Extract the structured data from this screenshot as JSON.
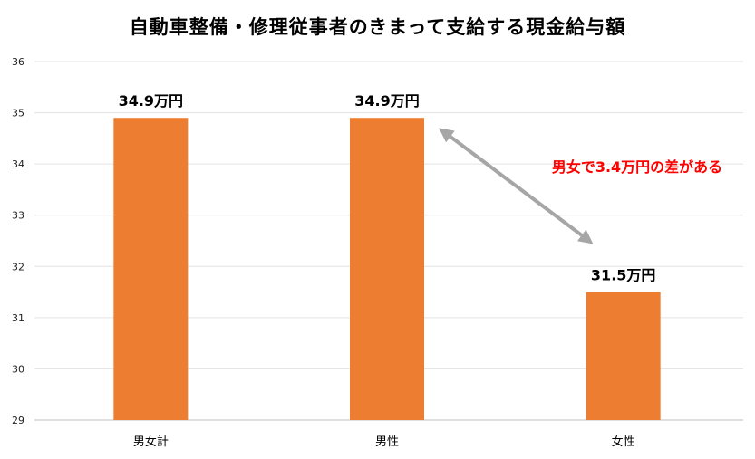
{
  "chart_data": {
    "type": "bar",
    "title": "自動車整備・修理従事者のきまって支給する現金給与額",
    "categories": [
      "男女計",
      "男性",
      "女性"
    ],
    "values": [
      34.9,
      34.9,
      31.5
    ],
    "data_labels": [
      "34.9万円",
      "34.9万円",
      "31.5万円"
    ],
    "ylim": [
      29,
      36
    ],
    "yticks": [
      "29",
      "30",
      "31",
      "32",
      "33",
      "34",
      "35",
      "36"
    ],
    "grid": true,
    "bar_color": "#ED7D31",
    "annotation": {
      "text": "男女で3.4万円の差がある",
      "color": "#FF0000",
      "arrow_color": "#A6A6A6",
      "from_category": "男性",
      "to_category": "女性"
    }
  }
}
